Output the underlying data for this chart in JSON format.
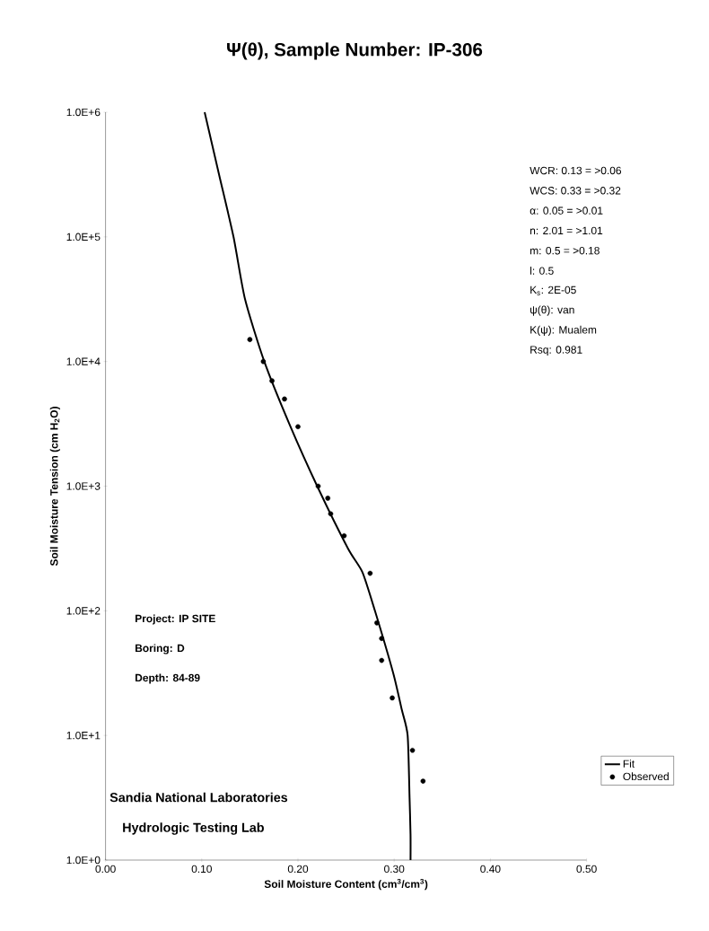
{
  "chart_data": {
    "type": "scatter",
    "title": "Ψ(θ), Sample Number: IP-306",
    "xlabel": "Soil Moisture Content (cm$^{3}$/cm$^{3}$)",
    "ylabel": "Soil Moisture Tension (cm H$_{2}$O)",
    "log": "y",
    "xlim": [
      0,
      0.5
    ],
    "ylim": [
      1,
      1000000
    ],
    "xticks": [
      {
        "value": 0,
        "label": "0.00"
      },
      {
        "value": 0.1,
        "label": "0.10"
      },
      {
        "value": 0.2,
        "label": "0.20"
      },
      {
        "value": 0.3,
        "label": "0.30"
      },
      {
        "value": 0.4,
        "label": "0.40"
      },
      {
        "value": 0.5,
        "label": "0.50"
      }
    ],
    "yticks": [
      {
        "value": 1,
        "label": "1.0E+0"
      },
      {
        "value": 10,
        "label": "1.0E+1"
      },
      {
        "value": 100,
        "label": "1.0E+2"
      },
      {
        "value": 1000,
        "label": "1.0E+3"
      },
      {
        "value": 10000,
        "label": "1.0E+4"
      },
      {
        "value": 100000,
        "label": "1.0E+5"
      },
      {
        "value": 1000000,
        "label": "1.0E+6"
      }
    ],
    "legend": "bottom right",
    "series": [
      {
        "name": "Fit",
        "type": "line",
        "color": "#000000",
        "marker": "none",
        "line_style": "solid",
        "x": [
          0.103,
          0.118,
          0.133,
          0.145,
          0.165,
          0.191,
          0.22,
          0.252,
          0.267,
          0.28,
          0.299,
          0.308,
          0.314,
          0.316,
          0.317,
          0.317
        ],
        "values": [
          1000000,
          316000,
          100000,
          31600,
          10000,
          3160,
          1000,
          316,
          204,
          100,
          31.6,
          16,
          10,
          3.16,
          1.6,
          1
        ]
      },
      {
        "name": "Observed",
        "color": "#000000",
        "marker": "circle",
        "x": [
          0.15,
          0.164,
          0.173,
          0.186,
          0.2,
          0.221,
          0.231,
          0.234,
          0.248,
          0.275,
          0.282,
          0.287,
          0.287,
          0.298,
          0.319,
          0.33
        ],
        "values": [
          15000,
          10000,
          7000,
          5000,
          3000,
          1000,
          800,
          600,
          400,
          200,
          80,
          60,
          40,
          20,
          7.6,
          4.3
        ]
      }
    ],
    "annotations": [
      "WCR:  0.13 = >0.06",
      "WCS:  0.33 = >0.32",
      "α:  0.05 = >0.01",
      "n:  2.01 = >1.01",
      "m:  0.5 = >0.18",
      "l:  0.5",
      "K$_{s}$:  2E-05",
      "ψ(θ):  van",
      "K(ψ):  Mualem",
      "Rsq:  0.981",
      "Project:  IP SITE",
      "Boring:  D",
      "Depth:  84-89",
      "Sandia National Laboratories",
      "Hydrologic Testing Lab"
    ]
  }
}
